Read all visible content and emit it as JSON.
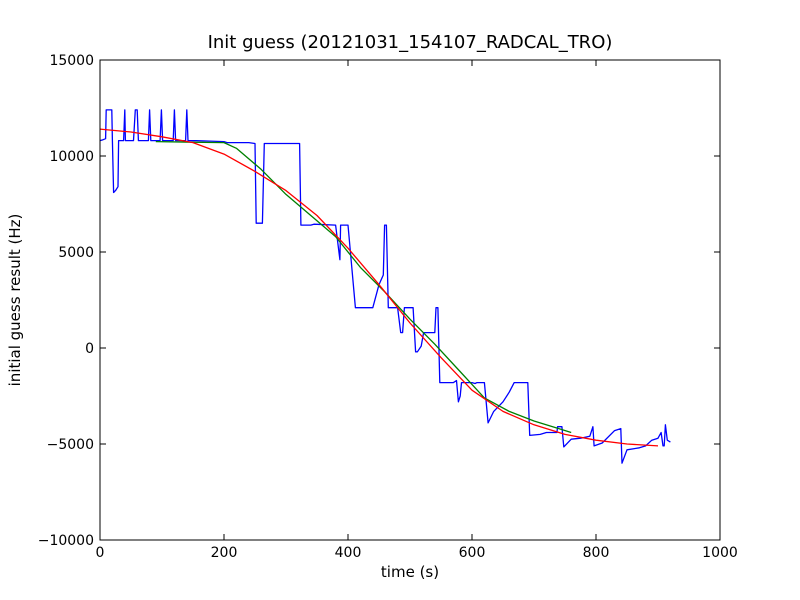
{
  "chart_data": {
    "type": "line",
    "title": "Init guess (20121031_154107_RADCAL_TRO)",
    "xlabel": "time (s)",
    "ylabel": "initial guess result (Hz)",
    "xlim": [
      0,
      1000
    ],
    "ylim": [
      -10000,
      15000
    ],
    "xticks": [
      "0",
      "200",
      "400",
      "600",
      "800",
      "1000"
    ],
    "yticks": [
      "−10000",
      "−5000",
      "0",
      "5000",
      "10000",
      "15000"
    ],
    "grid": false,
    "legend": "none",
    "series": [
      {
        "color": "#0000ff",
        "points": [
          [
            0,
            10800
          ],
          [
            5,
            10850
          ],
          [
            9,
            10900
          ],
          [
            10,
            12400
          ],
          [
            19,
            12400
          ],
          [
            20,
            10800
          ],
          [
            22,
            8100
          ],
          [
            25,
            8200
          ],
          [
            29,
            8400
          ],
          [
            30,
            10800
          ],
          [
            38,
            10800
          ],
          [
            40,
            12400
          ],
          [
            41,
            10800
          ],
          [
            54,
            10800
          ],
          [
            57,
            12400
          ],
          [
            60,
            12400
          ],
          [
            62,
            10800
          ],
          [
            78,
            10800
          ],
          [
            80,
            12400
          ],
          [
            82,
            10800
          ],
          [
            97,
            10800
          ],
          [
            99,
            12400
          ],
          [
            101,
            10800
          ],
          [
            118,
            10800
          ],
          [
            120,
            12400
          ],
          [
            122,
            10800
          ],
          [
            138,
            10800
          ],
          [
            140,
            12400
          ],
          [
            142,
            10800
          ],
          [
            155,
            10800
          ],
          [
            200,
            10750
          ],
          [
            205,
            10700
          ],
          [
            210,
            10700
          ],
          [
            218,
            10700
          ],
          [
            225,
            10700
          ],
          [
            240,
            10700
          ],
          [
            250,
            10650
          ],
          [
            252,
            6500
          ],
          [
            262,
            6500
          ],
          [
            265,
            10650
          ],
          [
            280,
            10650
          ],
          [
            300,
            10650
          ],
          [
            322,
            10650
          ],
          [
            324,
            6400
          ],
          [
            340,
            6400
          ],
          [
            345,
            6450
          ],
          [
            380,
            6400
          ],
          [
            387,
            4600
          ],
          [
            388,
            6400
          ],
          [
            400,
            6400
          ],
          [
            412,
            2100
          ],
          [
            440,
            2100
          ],
          [
            450,
            3300
          ],
          [
            457,
            3800
          ],
          [
            459,
            6400
          ],
          [
            462,
            6400
          ],
          [
            465,
            2100
          ],
          [
            480,
            2100
          ],
          [
            485,
            800
          ],
          [
            488,
            800
          ],
          [
            491,
            2100
          ],
          [
            505,
            2100
          ],
          [
            509,
            -200
          ],
          [
            512,
            -200
          ],
          [
            518,
            100
          ],
          [
            522,
            800
          ],
          [
            540,
            800
          ],
          [
            542,
            2100
          ],
          [
            545,
            2100
          ],
          [
            548,
            -1800
          ],
          [
            570,
            -1800
          ],
          [
            575,
            -1700
          ],
          [
            578,
            -2800
          ],
          [
            581,
            -2500
          ],
          [
            583,
            -1800
          ],
          [
            600,
            -1800
          ],
          [
            605,
            -1850
          ],
          [
            608,
            -1800
          ],
          [
            620,
            -1800
          ],
          [
            626,
            -3900
          ],
          [
            635,
            -3300
          ],
          [
            650,
            -2800
          ],
          [
            660,
            -2300
          ],
          [
            668,
            -1800
          ],
          [
            690,
            -1800
          ],
          [
            693,
            -4550
          ],
          [
            710,
            -4500
          ],
          [
            720,
            -4400
          ],
          [
            737,
            -4400
          ],
          [
            738,
            -4100
          ],
          [
            745,
            -4100
          ],
          [
            748,
            -5150
          ],
          [
            760,
            -4750
          ],
          [
            775,
            -4700
          ],
          [
            790,
            -4600
          ],
          [
            795,
            -4100
          ],
          [
            797,
            -5100
          ],
          [
            810,
            -4950
          ],
          [
            830,
            -4300
          ],
          [
            840,
            -4200
          ],
          [
            842,
            -6000
          ],
          [
            850,
            -5300
          ],
          [
            870,
            -5200
          ],
          [
            880,
            -5100
          ],
          [
            890,
            -4800
          ],
          [
            900,
            -4700
          ],
          [
            905,
            -4400
          ],
          [
            908,
            -5100
          ],
          [
            910,
            -5100
          ],
          [
            912,
            -4000
          ],
          [
            915,
            -4800
          ],
          [
            920,
            -4900
          ]
        ]
      },
      {
        "color": "#008000",
        "points": [
          [
            90,
            10750
          ],
          [
            150,
            10720
          ],
          [
            200,
            10700
          ],
          [
            220,
            10400
          ],
          [
            260,
            9300
          ],
          [
            300,
            8000
          ],
          [
            340,
            6900
          ],
          [
            380,
            5800
          ],
          [
            420,
            4200
          ],
          [
            460,
            2900
          ],
          [
            500,
            1500
          ],
          [
            540,
            200
          ],
          [
            580,
            -1200
          ],
          [
            620,
            -2600
          ],
          [
            660,
            -3300
          ],
          [
            700,
            -3800
          ],
          [
            740,
            -4200
          ],
          [
            760,
            -4400
          ]
        ]
      },
      {
        "color": "#ff0000",
        "points": [
          [
            0,
            11400
          ],
          [
            50,
            11250
          ],
          [
            100,
            11000
          ],
          [
            150,
            10700
          ],
          [
            200,
            10100
          ],
          [
            250,
            9200
          ],
          [
            300,
            8200
          ],
          [
            350,
            6900
          ],
          [
            400,
            5200
          ],
          [
            450,
            3300
          ],
          [
            500,
            1300
          ],
          [
            550,
            -500
          ],
          [
            600,
            -2200
          ],
          [
            650,
            -3300
          ],
          [
            700,
            -4000
          ],
          [
            750,
            -4500
          ],
          [
            800,
            -4800
          ],
          [
            850,
            -5000
          ],
          [
            900,
            -5100
          ]
        ]
      }
    ]
  }
}
